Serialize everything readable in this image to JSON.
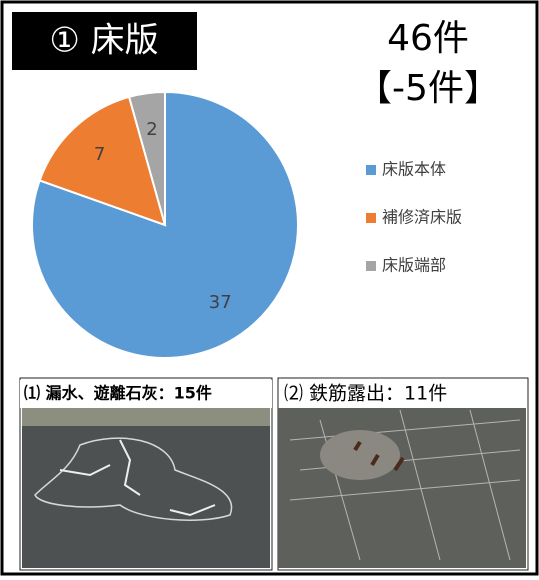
{
  "chart_data": {
    "type": "pie",
    "title": "① 床版",
    "total_text": "46件",
    "change_text": "【-5件】",
    "categories": [
      "床版本体",
      "補修済床版",
      "床版端部"
    ],
    "values": [
      37,
      7,
      2
    ],
    "colors": [
      "#5b9bd5",
      "#ed7d31",
      "#a5a5a5"
    ],
    "legend": "right"
  },
  "photos": [
    {
      "caption": "⑴ 漏水、遊離石灰：15件"
    },
    {
      "caption": "⑵ 鉄筋露出：11件"
    }
  ]
}
